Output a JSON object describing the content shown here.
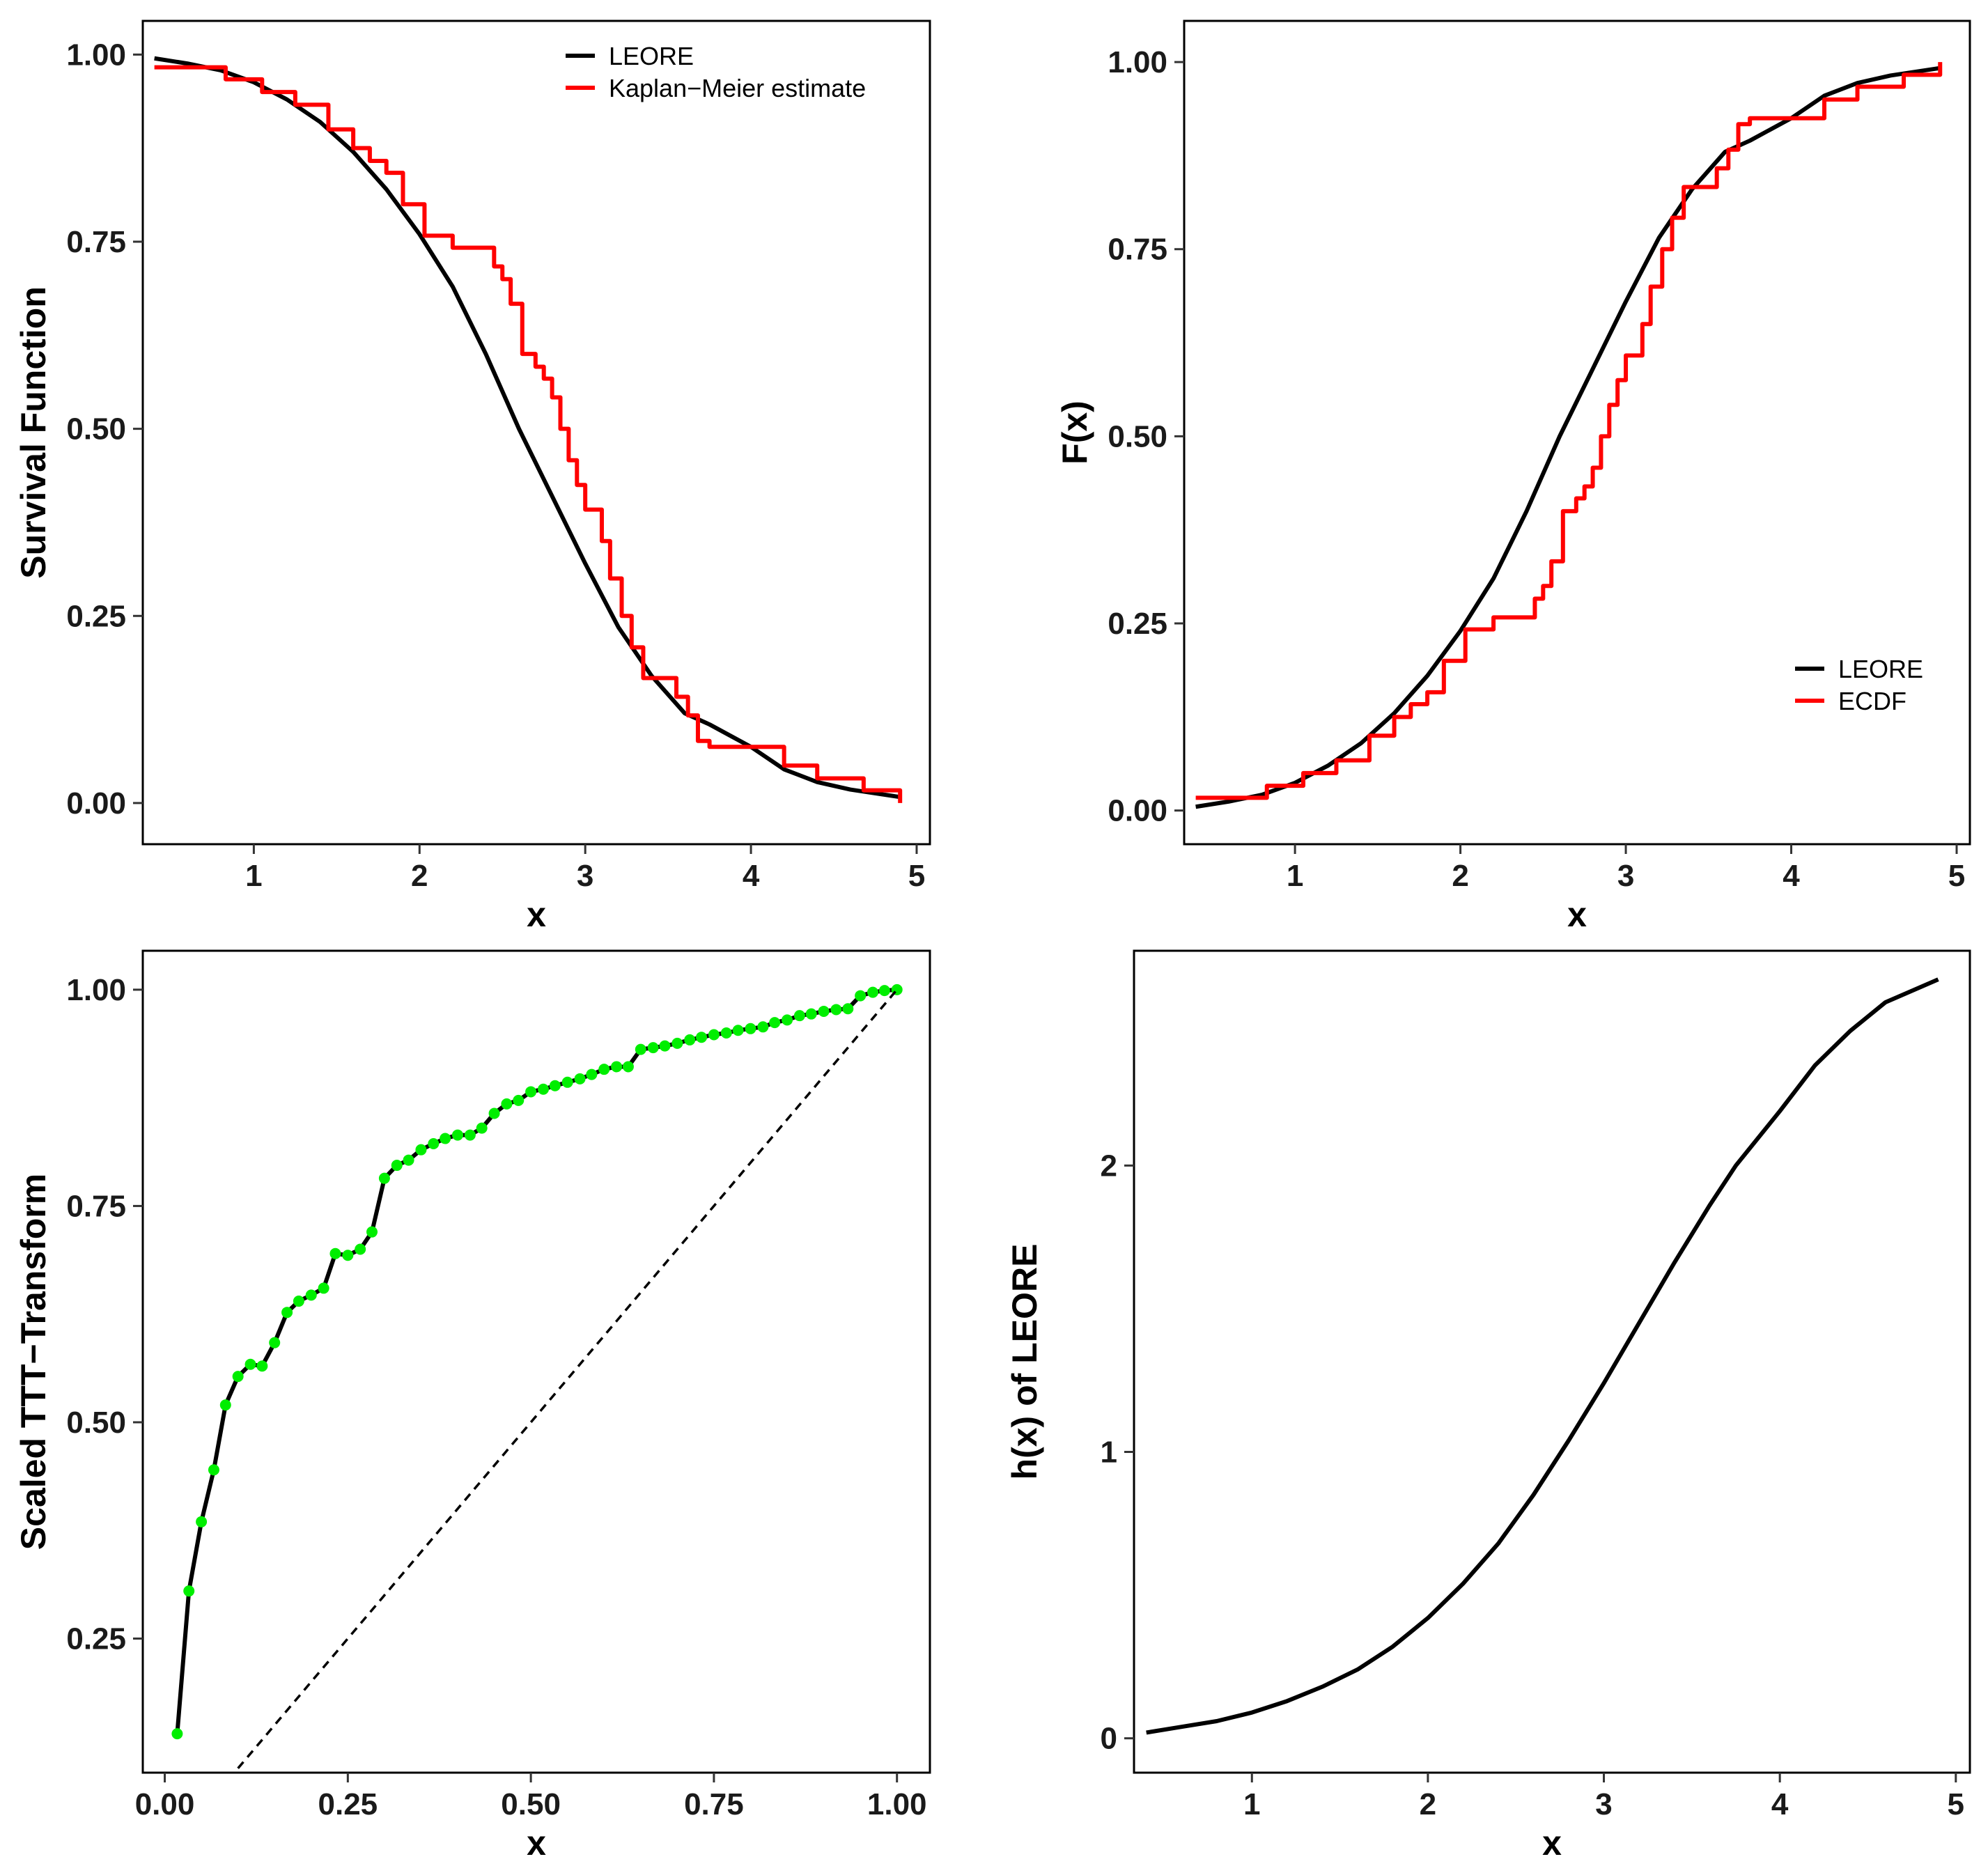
{
  "colors": {
    "model": "#000000",
    "empirical": "#ff0000",
    "points": "#00ee00",
    "reference": "#000000"
  },
  "chart_data": [
    {
      "id": "panel-survival",
      "type": "line",
      "xlabel": "x",
      "ylabel": "Survival Function",
      "xlim": [
        0.33,
        5.08
      ],
      "ylim": [
        -0.055,
        1.045
      ],
      "xticks": [
        1,
        2,
        3,
        4,
        5
      ],
      "xtick_labels": [
        "1",
        "2",
        "3",
        "4",
        "5"
      ],
      "yticks": [
        0,
        0.25,
        0.5,
        0.75,
        1
      ],
      "ytick_labels": [
        "0.00",
        "0.25",
        "0.50",
        "0.75",
        "1.00"
      ],
      "legend": [
        "LEORE",
        "Kaplan−Meier estimate"
      ],
      "legend_position": "top-right",
      "series": [
        {
          "name": "LEORE",
          "style": "line",
          "color": "model",
          "x": [
            0.4,
            0.6,
            0.8,
            1.0,
            1.2,
            1.4,
            1.6,
            1.8,
            2.0,
            2.2,
            2.4,
            2.6,
            2.8,
            3.0,
            3.2,
            3.4,
            3.6,
            3.75,
            4.0,
            4.2,
            4.4,
            4.6,
            4.9
          ],
          "y": [
            0.995,
            0.988,
            0.979,
            0.963,
            0.94,
            0.91,
            0.87,
            0.82,
            0.76,
            0.69,
            0.6,
            0.5,
            0.41,
            0.32,
            0.235,
            0.17,
            0.12,
            0.105,
            0.075,
            0.045,
            0.028,
            0.018,
            0.008
          ]
        },
        {
          "name": "Kaplan−Meier estimate",
          "style": "step",
          "color": "empirical",
          "x": [
            0.4,
            0.83,
            1.05,
            1.25,
            1.45,
            1.6,
            1.7,
            1.8,
            1.9,
            2.03,
            2.2,
            2.45,
            2.5,
            2.55,
            2.62,
            2.7,
            2.75,
            2.8,
            2.85,
            2.9,
            2.95,
            3.0,
            3.1,
            3.15,
            3.22,
            3.28,
            3.35,
            3.55,
            3.62,
            3.68,
            3.75,
            4.2,
            4.4,
            4.68,
            4.9
          ],
          "y": [
            0.983,
            0.967,
            0.95,
            0.933,
            0.9,
            0.875,
            0.858,
            0.842,
            0.8,
            0.758,
            0.742,
            0.717,
            0.7,
            0.667,
            0.6,
            0.583,
            0.567,
            0.542,
            0.5,
            0.458,
            0.425,
            0.392,
            0.35,
            0.3,
            0.25,
            0.208,
            0.167,
            0.142,
            0.117,
            0.083,
            0.075,
            0.05,
            0.033,
            0.017,
            0.0
          ]
        }
      ]
    },
    {
      "id": "panel-cdf",
      "type": "line",
      "xlabel": "x",
      "ylabel": "F(x)",
      "xlim": [
        0.33,
        5.08
      ],
      "ylim": [
        -0.045,
        1.055
      ],
      "xticks": [
        1,
        2,
        3,
        4,
        5
      ],
      "xtick_labels": [
        "1",
        "2",
        "3",
        "4",
        "5"
      ],
      "yticks": [
        0,
        0.25,
        0.5,
        0.75,
        1
      ],
      "ytick_labels": [
        "0.00",
        "0.25",
        "0.50",
        "0.75",
        "1.00"
      ],
      "legend": [
        "LEORE",
        "ECDF"
      ],
      "legend_position": "bottom-right",
      "series": [
        {
          "name": "LEORE",
          "style": "line",
          "color": "model",
          "x": [
            0.4,
            0.6,
            0.8,
            1.0,
            1.2,
            1.4,
            1.6,
            1.8,
            2.0,
            2.2,
            2.4,
            2.6,
            2.8,
            3.0,
            3.2,
            3.4,
            3.6,
            3.75,
            4.0,
            4.2,
            4.4,
            4.6,
            4.9
          ],
          "y": [
            0.005,
            0.012,
            0.021,
            0.037,
            0.06,
            0.09,
            0.13,
            0.18,
            0.24,
            0.31,
            0.4,
            0.5,
            0.59,
            0.68,
            0.765,
            0.83,
            0.88,
            0.895,
            0.925,
            0.955,
            0.972,
            0.982,
            0.992
          ]
        },
        {
          "name": "ECDF",
          "style": "step",
          "color": "empirical",
          "x": [
            0.4,
            0.83,
            1.05,
            1.25,
            1.45,
            1.6,
            1.7,
            1.8,
            1.9,
            2.03,
            2.2,
            2.45,
            2.5,
            2.55,
            2.62,
            2.7,
            2.75,
            2.8,
            2.85,
            2.9,
            2.95,
            3.0,
            3.1,
            3.15,
            3.22,
            3.28,
            3.35,
            3.55,
            3.62,
            3.68,
            3.75,
            4.2,
            4.4,
            4.68,
            4.9
          ],
          "y": [
            0.017,
            0.033,
            0.05,
            0.067,
            0.1,
            0.125,
            0.142,
            0.158,
            0.2,
            0.242,
            0.258,
            0.283,
            0.3,
            0.333,
            0.4,
            0.417,
            0.433,
            0.458,
            0.5,
            0.542,
            0.575,
            0.608,
            0.65,
            0.7,
            0.75,
            0.792,
            0.833,
            0.858,
            0.883,
            0.917,
            0.925,
            0.95,
            0.967,
            0.983,
            1.0
          ]
        }
      ]
    },
    {
      "id": "panel-ttt",
      "type": "line",
      "xlabel": "x",
      "ylabel": "Scaled TTT−Transform",
      "xlim": [
        -0.03,
        1.045
      ],
      "ylim": [
        0.095,
        1.045
      ],
      "xticks": [
        0,
        0.25,
        0.5,
        0.75,
        1
      ],
      "xtick_labels": [
        "0.00",
        "0.25",
        "0.50",
        "0.75",
        "1.00"
      ],
      "yticks": [
        0.25,
        0.5,
        0.75,
        1
      ],
      "ytick_labels": [
        "0.25",
        "0.50",
        "0.75",
        "1.00"
      ],
      "series": [
        {
          "name": "Scaled TTT−Transform",
          "style": "line+points",
          "color": "model",
          "point_color": "points",
          "x": [
            0.017,
            0.033,
            0.05,
            0.067,
            0.083,
            0.1,
            0.117,
            0.133,
            0.15,
            0.167,
            0.183,
            0.2,
            0.217,
            0.233,
            0.25,
            0.267,
            0.283,
            0.3,
            0.317,
            0.333,
            0.35,
            0.367,
            0.383,
            0.4,
            0.417,
            0.433,
            0.45,
            0.467,
            0.483,
            0.5,
            0.517,
            0.533,
            0.55,
            0.567,
            0.583,
            0.6,
            0.617,
            0.633,
            0.65,
            0.667,
            0.683,
            0.7,
            0.717,
            0.733,
            0.75,
            0.767,
            0.783,
            0.8,
            0.817,
            0.833,
            0.85,
            0.867,
            0.883,
            0.9,
            0.917,
            0.933,
            0.95,
            0.967,
            0.983,
            1.0
          ],
          "y": [
            0.14,
            0.305,
            0.385,
            0.445,
            0.52,
            0.553,
            0.567,
            0.565,
            0.592,
            0.627,
            0.64,
            0.647,
            0.655,
            0.695,
            0.693,
            0.7,
            0.72,
            0.782,
            0.797,
            0.803,
            0.815,
            0.822,
            0.828,
            0.832,
            0.832,
            0.84,
            0.857,
            0.868,
            0.872,
            0.882,
            0.885,
            0.889,
            0.893,
            0.897,
            0.902,
            0.908,
            0.911,
            0.911,
            0.931,
            0.933,
            0.935,
            0.938,
            0.942,
            0.945,
            0.948,
            0.95,
            0.953,
            0.955,
            0.957,
            0.962,
            0.965,
            0.97,
            0.972,
            0.975,
            0.977,
            0.978,
            0.993,
            0.997,
            0.999,
            1.0
          ]
        },
        {
          "name": "reference line",
          "style": "dashed",
          "color": "reference",
          "x": [
            0.1,
            1.0
          ],
          "y": [
            0.1,
            1.0
          ]
        }
      ]
    },
    {
      "id": "panel-hazard",
      "type": "line",
      "xlabel": "x",
      "ylabel": "h(x) of LEORE",
      "xlim": [
        0.33,
        5.08
      ],
      "ylim": [
        -0.12,
        2.75
      ],
      "xticks": [
        1,
        2,
        3,
        4,
        5
      ],
      "xtick_labels": [
        "1",
        "2",
        "3",
        "4",
        "5"
      ],
      "yticks": [
        0,
        1,
        2
      ],
      "ytick_labels": [
        "0",
        "1",
        "2"
      ],
      "series": [
        {
          "name": "h(x) of LEORE",
          "style": "line",
          "color": "model",
          "x": [
            0.4,
            0.6,
            0.8,
            1.0,
            1.2,
            1.4,
            1.6,
            1.8,
            2.0,
            2.2,
            2.4,
            2.6,
            2.8,
            3.0,
            3.2,
            3.4,
            3.6,
            3.75,
            4.0,
            4.2,
            4.4,
            4.6,
            4.9
          ],
          "y": [
            0.02,
            0.04,
            0.06,
            0.09,
            0.13,
            0.18,
            0.24,
            0.32,
            0.42,
            0.54,
            0.68,
            0.85,
            1.04,
            1.24,
            1.45,
            1.66,
            1.86,
            2.0,
            2.19,
            2.35,
            2.47,
            2.57,
            2.65
          ]
        }
      ]
    }
  ]
}
